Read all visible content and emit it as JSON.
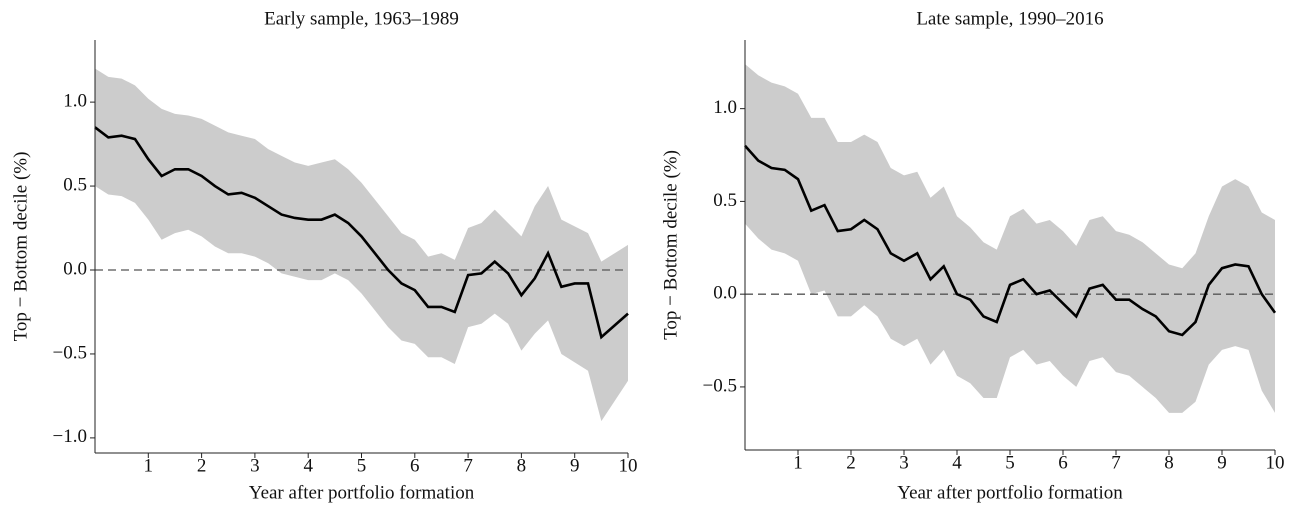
{
  "chart_data": [
    {
      "type": "line",
      "title": "Early sample, 1963–1989",
      "xlabel": "Year after portfolio formation",
      "ylabel": "Top − Bottom decile (%)",
      "x": [
        0,
        0.25,
        0.5,
        0.75,
        1,
        1.25,
        1.5,
        1.75,
        2,
        2.25,
        2.5,
        2.75,
        3,
        3.25,
        3.5,
        3.75,
        4,
        4.25,
        4.5,
        4.75,
        5,
        5.25,
        5.5,
        5.75,
        6,
        6.25,
        6.5,
        6.75,
        7,
        7.25,
        7.5,
        7.75,
        8,
        8.25,
        8.5,
        8.75,
        9,
        9.25,
        9.5,
        9.75,
        10
      ],
      "series": [
        {
          "color": "#000000",
          "values": [
            0.85,
            0.79,
            0.8,
            0.78,
            0.66,
            0.56,
            0.6,
            0.6,
            0.56,
            0.5,
            0.45,
            0.46,
            0.43,
            0.38,
            0.33,
            0.31,
            0.3,
            0.3,
            0.33,
            0.28,
            0.2,
            0.1,
            0.0,
            -0.08,
            -0.12,
            -0.22,
            -0.22,
            -0.25,
            -0.03,
            -0.02,
            0.05,
            -0.02,
            -0.15,
            -0.05,
            0.1,
            -0.1,
            -0.08,
            -0.08,
            -0.4,
            -0.33,
            -0.26
          ]
        }
      ],
      "band": {
        "color": "#cccccc",
        "upper": [
          1.2,
          1.15,
          1.14,
          1.1,
          1.02,
          0.96,
          0.93,
          0.92,
          0.9,
          0.86,
          0.82,
          0.8,
          0.78,
          0.72,
          0.68,
          0.64,
          0.62,
          0.64,
          0.66,
          0.6,
          0.52,
          0.42,
          0.32,
          0.22,
          0.18,
          0.08,
          0.1,
          0.06,
          0.25,
          0.28,
          0.36,
          0.28,
          0.2,
          0.38,
          0.5,
          0.3,
          0.26,
          0.22,
          0.05,
          0.1,
          0.15
        ],
        "lower": [
          0.5,
          0.45,
          0.44,
          0.4,
          0.3,
          0.18,
          0.22,
          0.24,
          0.2,
          0.14,
          0.1,
          0.1,
          0.08,
          0.04,
          -0.02,
          -0.04,
          -0.06,
          -0.06,
          -0.02,
          -0.06,
          -0.14,
          -0.24,
          -0.34,
          -0.42,
          -0.44,
          -0.52,
          -0.52,
          -0.56,
          -0.34,
          -0.32,
          -0.26,
          -0.32,
          -0.48,
          -0.38,
          -0.3,
          -0.5,
          -0.55,
          -0.6,
          -0.9,
          -0.78,
          -0.66
        ]
      },
      "hline": 0,
      "xlim": [
        0,
        10
      ],
      "ylim": [
        -1.09,
        1.37
      ],
      "xticks": [
        1,
        2,
        3,
        4,
        5,
        6,
        7,
        8,
        9,
        10
      ],
      "yticks": [
        {
          "value": -1.0,
          "label": "−1.0"
        },
        {
          "value": -0.5,
          "label": "−0.5"
        },
        {
          "value": 0.0,
          "label": "0.0"
        },
        {
          "value": 0.5,
          "label": "0.5"
        },
        {
          "value": 1.0,
          "label": "1.0"
        }
      ]
    },
    {
      "type": "line",
      "title": "Late sample, 1990–2016",
      "xlabel": "Year after portfolio formation",
      "ylabel": "Top − Bottom decile (%)",
      "x": [
        0,
        0.25,
        0.5,
        0.75,
        1,
        1.25,
        1.5,
        1.75,
        2,
        2.25,
        2.5,
        2.75,
        3,
        3.25,
        3.5,
        3.75,
        4,
        4.25,
        4.5,
        4.75,
        5,
        5.25,
        5.5,
        5.75,
        6,
        6.25,
        6.5,
        6.75,
        7,
        7.25,
        7.5,
        7.75,
        8,
        8.25,
        8.5,
        8.75,
        9,
        9.25,
        9.5,
        9.75,
        10
      ],
      "series": [
        {
          "color": "#000000",
          "values": [
            0.8,
            0.72,
            0.68,
            0.67,
            0.62,
            0.45,
            0.48,
            0.34,
            0.35,
            0.4,
            0.35,
            0.22,
            0.18,
            0.22,
            0.08,
            0.15,
            0.0,
            -0.03,
            -0.12,
            -0.15,
            0.05,
            0.08,
            0.0,
            0.02,
            -0.05,
            -0.12,
            0.03,
            0.05,
            -0.03,
            -0.03,
            -0.08,
            -0.12,
            -0.2,
            -0.22,
            -0.15,
            0.05,
            0.14,
            0.16,
            0.15,
            0.0,
            -0.1
          ]
        }
      ],
      "band": {
        "color": "#cccccc",
        "upper": [
          1.24,
          1.18,
          1.14,
          1.12,
          1.08,
          0.95,
          0.95,
          0.82,
          0.82,
          0.86,
          0.82,
          0.68,
          0.64,
          0.66,
          0.52,
          0.58,
          0.42,
          0.36,
          0.28,
          0.24,
          0.42,
          0.46,
          0.38,
          0.4,
          0.34,
          0.26,
          0.4,
          0.42,
          0.34,
          0.32,
          0.28,
          0.22,
          0.16,
          0.14,
          0.22,
          0.42,
          0.58,
          0.62,
          0.58,
          0.44,
          0.4
        ],
        "lower": [
          0.38,
          0.3,
          0.24,
          0.22,
          0.18,
          0.0,
          0.02,
          -0.12,
          -0.12,
          -0.06,
          -0.12,
          -0.24,
          -0.28,
          -0.24,
          -0.38,
          -0.3,
          -0.44,
          -0.48,
          -0.56,
          -0.56,
          -0.34,
          -0.3,
          -0.38,
          -0.36,
          -0.44,
          -0.5,
          -0.36,
          -0.34,
          -0.42,
          -0.44,
          -0.5,
          -0.56,
          -0.64,
          -0.64,
          -0.58,
          -0.38,
          -0.3,
          -0.28,
          -0.3,
          -0.52,
          -0.64
        ]
      },
      "hline": 0,
      "xlim": [
        0,
        10
      ],
      "ylim": [
        -0.84,
        1.37
      ],
      "xticks": [
        1,
        2,
        3,
        4,
        5,
        6,
        7,
        8,
        9,
        10
      ],
      "yticks": [
        {
          "value": -0.5,
          "label": "−0.5"
        },
        {
          "value": 0.0,
          "label": "0.0"
        },
        {
          "value": 0.5,
          "label": "0.5"
        },
        {
          "value": 1.0,
          "label": "1.0"
        }
      ]
    }
  ]
}
